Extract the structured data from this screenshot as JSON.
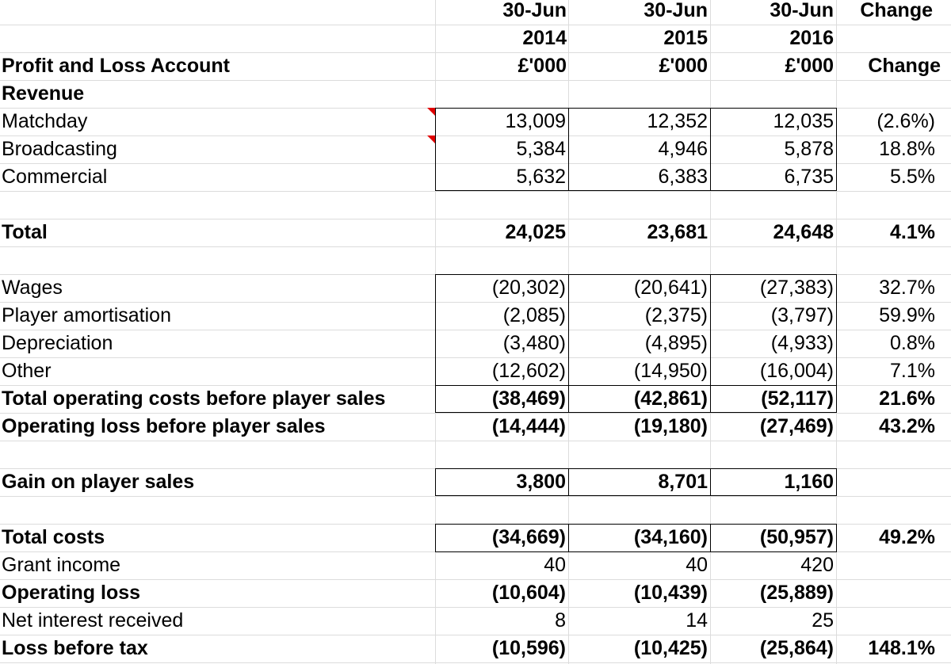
{
  "header": {
    "col_2014": [
      "30-Jun",
      "2014",
      "£'000"
    ],
    "col_2015": [
      "30-Jun",
      "2015",
      "£'000"
    ],
    "col_2016": [
      "30-Jun",
      "2016",
      "£'000"
    ],
    "col_change_top": "Change",
    "col_change": "Change",
    "title": "Profit and Loss Account"
  },
  "rows": [
    {
      "label": "Revenue",
      "v1": "",
      "v2": "",
      "v3": "",
      "ch": "",
      "bold": true
    },
    {
      "label": "Matchday",
      "v1": "13,009",
      "v2": "12,352",
      "v3": "12,035",
      "ch": "(2.6%)",
      "bold": false
    },
    {
      "label": "Broadcasting",
      "v1": "5,384",
      "v2": "4,946",
      "v3": "5,878",
      "ch": "18.8%",
      "bold": false
    },
    {
      "label": "Commercial",
      "v1": "5,632",
      "v2": "6,383",
      "v3": "6,735",
      "ch": "5.5%",
      "bold": false
    },
    {
      "label": "",
      "v1": "",
      "v2": "",
      "v3": "",
      "ch": "",
      "bold": false
    },
    {
      "label": "Total",
      "v1": "24,025",
      "v2": "23,681",
      "v3": "24,648",
      "ch": "4.1%",
      "bold": true
    },
    {
      "label": "",
      "v1": "",
      "v2": "",
      "v3": "",
      "ch": "",
      "bold": false
    },
    {
      "label": "Wages",
      "v1": "(20,302)",
      "v2": "(20,641)",
      "v3": "(27,383)",
      "ch": "32.7%",
      "bold": false
    },
    {
      "label": "Player amortisation",
      "v1": "(2,085)",
      "v2": "(2,375)",
      "v3": "(3,797)",
      "ch": "59.9%",
      "bold": false
    },
    {
      "label": "Depreciation",
      "v1": "(3,480)",
      "v2": "(4,895)",
      "v3": "(4,933)",
      "ch": "0.8%",
      "bold": false
    },
    {
      "label": "Other",
      "v1": "(12,602)",
      "v2": "(14,950)",
      "v3": "(16,004)",
      "ch": "7.1%",
      "bold": false
    },
    {
      "label": "Total operating costs before player sales",
      "v1": "(38,469)",
      "v2": "(42,861)",
      "v3": "(52,117)",
      "ch": "21.6%",
      "bold": true
    },
    {
      "label": "Operating loss before player sales",
      "v1": "(14,444)",
      "v2": "(19,180)",
      "v3": "(27,469)",
      "ch": "43.2%",
      "bold": true
    },
    {
      "label": "",
      "v1": "",
      "v2": "",
      "v3": "",
      "ch": "",
      "bold": false
    },
    {
      "label": "Gain on player sales",
      "v1": "3,800",
      "v2": "8,701",
      "v3": "1,160",
      "ch": "",
      "bold": true
    },
    {
      "label": "",
      "v1": "",
      "v2": "",
      "v3": "",
      "ch": "",
      "bold": false
    },
    {
      "label": "Total costs",
      "v1": "(34,669)",
      "v2": "(34,160)",
      "v3": "(50,957)",
      "ch": "49.2%",
      "bold": true
    },
    {
      "label": "Grant income",
      "v1": "40",
      "v2": "40",
      "v3": "420",
      "ch": "",
      "bold": false
    },
    {
      "label": "Operating loss",
      "v1": "(10,604)",
      "v2": "(10,439)",
      "v3": "(25,889)",
      "ch": "",
      "bold": true
    },
    {
      "label": "Net interest received",
      "v1": "8",
      "v2": "14",
      "v3": "25",
      "ch": "",
      "bold": false
    },
    {
      "label": "Loss before tax",
      "v1": "(10,596)",
      "v2": "(10,425)",
      "v3": "(25,864)",
      "ch": "148.1%",
      "bold": true
    }
  ],
  "colors": {
    "gridline": "#dcdcdc",
    "border": "#000000",
    "comment_marker": "#e00000"
  }
}
